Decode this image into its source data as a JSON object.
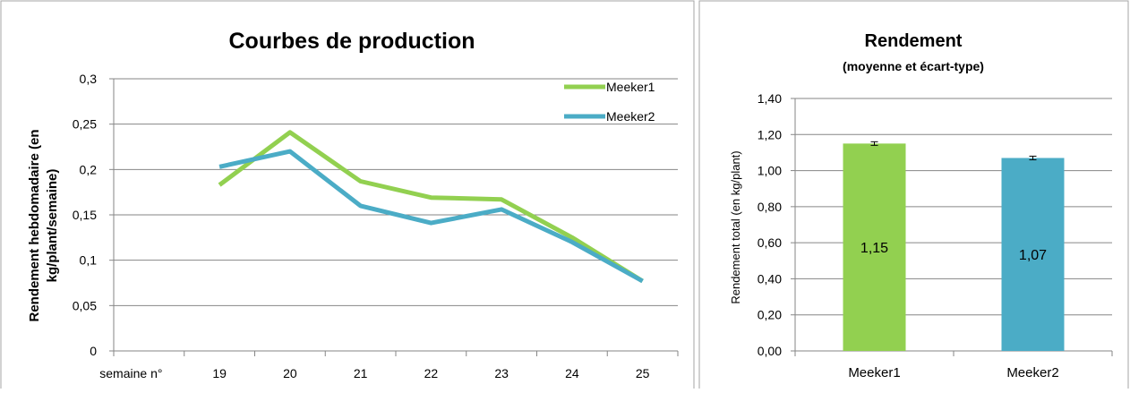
{
  "colors": {
    "meeker1": "#92d050",
    "meeker2": "#4bacc6",
    "grid": "#868686",
    "axis": "#868686",
    "text": "#000000",
    "frame": "#a6a6a6"
  },
  "chart_data": [
    {
      "type": "line",
      "title": "Courbes de production",
      "xlabel": "",
      "ylabel": "Rendement hebdomadaire (en kg/plant/semaine)",
      "ylabel_lines": [
        "Rendement hebdomadaire (en",
        "kg/plant/semaine)"
      ],
      "categories": [
        "semaine n°",
        "19",
        "20",
        "21",
        "22",
        "23",
        "24",
        "25"
      ],
      "ylim": [
        0,
        0.3
      ],
      "yticks": [
        "0",
        "0,05",
        "0,1",
        "0,15",
        "0,2",
        "0,25",
        "0,3"
      ],
      "grid": true,
      "legend_position": "top-right",
      "series": [
        {
          "name": "Meeker1",
          "color": "#92d050",
          "values": [
            null,
            0.183,
            0.241,
            0.187,
            0.169,
            0.167,
            0.125,
            0.077
          ]
        },
        {
          "name": "Meeker2",
          "color": "#4bacc6",
          "values": [
            null,
            0.203,
            0.22,
            0.16,
            0.141,
            0.156,
            0.12,
            0.077
          ]
        }
      ]
    },
    {
      "type": "bar",
      "title": "Rendement",
      "subtitle": "(moyenne et écart-type)",
      "xlabel": "",
      "ylabel": "Rendement total (en kg/plant)",
      "categories": [
        "Meeker1",
        "Meeker2"
      ],
      "values": [
        1.15,
        1.07
      ],
      "value_labels": [
        "1,15",
        "1,07"
      ],
      "error": [
        0.01,
        0.01
      ],
      "bar_colors": [
        "#92d050",
        "#4bacc6"
      ],
      "ylim": [
        0,
        1.4
      ],
      "yticks": [
        "0,00",
        "0,20",
        "0,40",
        "0,60",
        "0,80",
        "1,00",
        "1,20",
        "1,40"
      ],
      "grid": true
    }
  ]
}
